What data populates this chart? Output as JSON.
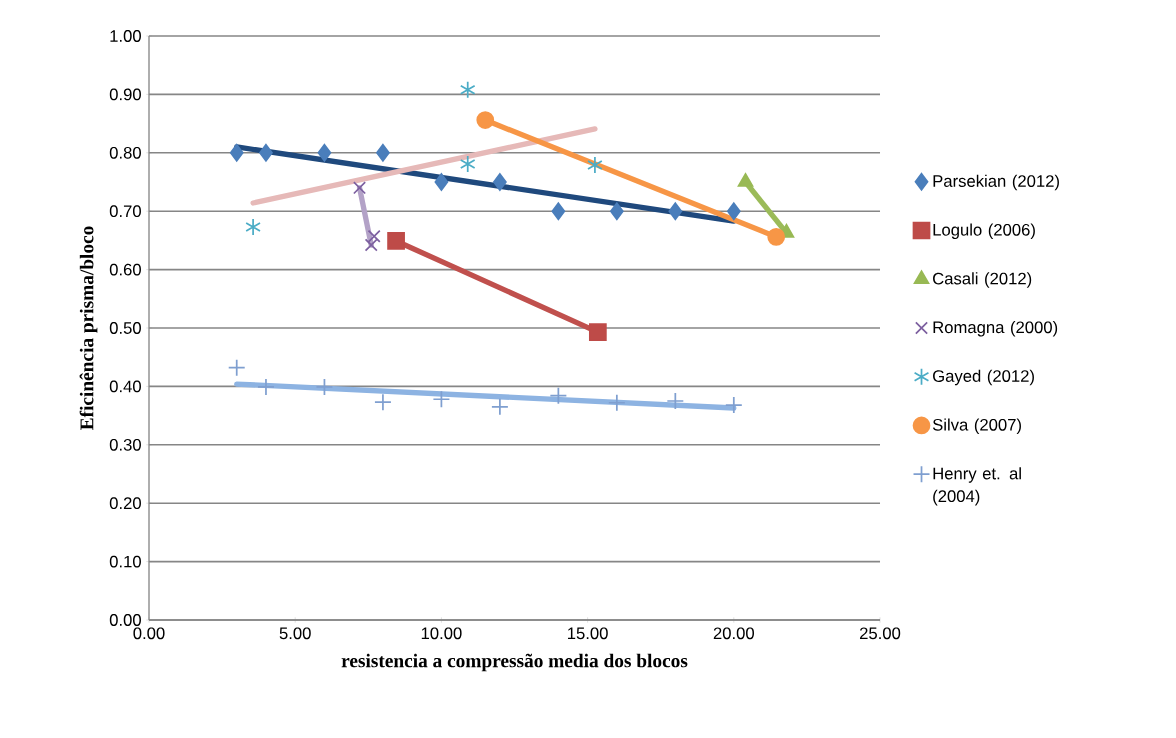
{
  "chart_data": {
    "type": "scatter",
    "xlabel": "resistencia a compressão media dos blocos",
    "ylabel": "Eficinência prisma/bloco",
    "xlim": [
      0,
      25
    ],
    "ylim": [
      0,
      1
    ],
    "xticks": [
      {
        "value": 0,
        "label": "0.00"
      },
      {
        "value": 5,
        "label": "5.00"
      },
      {
        "value": 10,
        "label": "10.00"
      },
      {
        "value": 15,
        "label": "15.00"
      },
      {
        "value": 20,
        "label": "20.00"
      },
      {
        "value": 25,
        "label": "25.00"
      }
    ],
    "yticks": [
      {
        "value": 0,
        "label": "0.00"
      },
      {
        "value": 0.1,
        "label": "0.10"
      },
      {
        "value": 0.2,
        "label": "0.20"
      },
      {
        "value": 0.3,
        "label": "0.30"
      },
      {
        "value": 0.4,
        "label": "0.40"
      },
      {
        "value": 0.5,
        "label": "0.50"
      },
      {
        "value": 0.6,
        "label": "0.60"
      },
      {
        "value": 0.7,
        "label": "0.70"
      },
      {
        "value": 0.8,
        "label": "0.80"
      },
      {
        "value": 0.9,
        "label": "0.90"
      },
      {
        "value": 1,
        "label": "1.00"
      }
    ],
    "grid": "y",
    "legend": "right",
    "series": [
      {
        "type": "line",
        "marker": "none",
        "color": "#1f497d",
        "x": [
          3,
          20
        ],
        "values": [
          0.81,
          0.683
        ]
      },
      {
        "type": "line",
        "marker": "none",
        "color": "#c0504d",
        "x": [
          8.45,
          15.35
        ],
        "values": [
          0.649,
          0.493
        ]
      },
      {
        "type": "line",
        "marker": "none",
        "color": "#9bbb59",
        "x": [
          20.4,
          21.8
        ],
        "values": [
          0.75,
          0.663
        ]
      },
      {
        "type": "line",
        "marker": "none",
        "color": "#b3a2c7",
        "x": [
          7.2,
          7.6
        ],
        "values": [
          0.74,
          0.642
        ]
      },
      {
        "type": "line",
        "marker": "none",
        "color": "#e6b9b8",
        "x": [
          3.56,
          15.25
        ],
        "values": [
          0.714,
          0.841
        ]
      },
      {
        "type": "line",
        "marker": "none",
        "color": "#f79646",
        "x": [
          11.5,
          21.45
        ],
        "values": [
          0.856,
          0.656
        ]
      },
      {
        "type": "line",
        "marker": "none",
        "color": "#8db3e2",
        "x": [
          3,
          20
        ],
        "values": [
          0.404,
          0.363
        ]
      },
      {
        "name": "Parsekian (2012)",
        "marker": "diamond",
        "color": "#4a7ebb",
        "x": [
          3,
          4,
          6,
          8,
          10,
          12,
          14,
          16,
          18,
          20
        ],
        "values": [
          0.8,
          0.8,
          0.8,
          0.8,
          0.75,
          0.75,
          0.7,
          0.7,
          0.7,
          0.7
        ]
      },
      {
        "name": "Logulo (2006)",
        "marker": "square",
        "color": "#be4b48",
        "x": [
          8.45,
          15.35
        ],
        "values": [
          0.649,
          0.493
        ]
      },
      {
        "name": "Casali (2012)",
        "marker": "triangle",
        "color": "#98b954",
        "x": [
          20.4,
          21.8
        ],
        "values": [
          0.75,
          0.663
        ]
      },
      {
        "name": "Romagna (2000)",
        "marker": "cross",
        "color": "#7d60a0",
        "x": [
          7.2,
          7.6,
          7.7
        ],
        "values": [
          0.74,
          0.642,
          0.657
        ]
      },
      {
        "name": "Gayed (2012)",
        "color": "#4bacc6",
        "x": [
          3.56,
          10.9,
          10.9,
          15.25
        ],
        "values": [
          0.673,
          0.908,
          0.781,
          0.779
        ]
      },
      {
        "name": "Silva (2007)",
        "marker": "circle",
        "color": "#f79646",
        "x": [
          11.5,
          21.45
        ],
        "values": [
          0.856,
          0.656
        ]
      },
      {
        "name": "Henry et. al (2004)",
        "marker": "plus",
        "color": "#7f9fd0",
        "x": [
          3,
          4,
          6,
          8,
          10,
          12,
          14,
          16,
          18,
          20
        ],
        "values": [
          0.432,
          0.399,
          0.399,
          0.373,
          0.378,
          0.365,
          0.384,
          0.372,
          0.375,
          0.368
        ]
      }
    ]
  }
}
